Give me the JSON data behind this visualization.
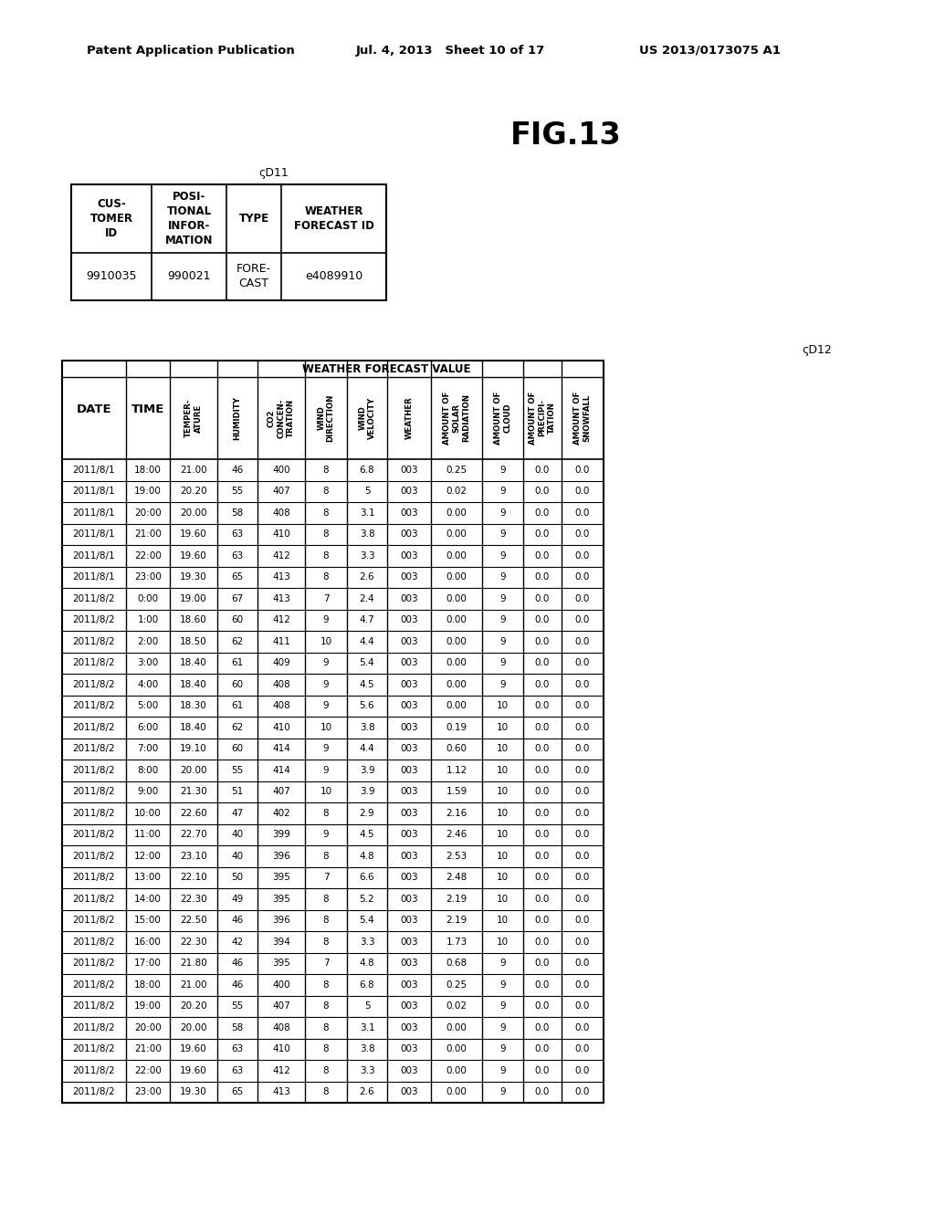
{
  "header_left": "Patent Application Publication",
  "header_mid": "Jul. 4, 2013   Sheet 10 of 17",
  "header_right": "US 2013/0173075 A1",
  "fig_title": "FIG.13",
  "d11_label": "D11",
  "d12_label": "D12",
  "table1_headers": [
    "CUS-\nTOMER\nID",
    "POSI-\nTIONAL\nINFOR-\nMATION",
    "TYPE",
    "WEATHER\nFORECAST ID"
  ],
  "table1_data": [
    [
      "9910035",
      "990021",
      "FORE-\nCAST",
      "e4089910"
    ]
  ],
  "table2_col1_header": "DATE",
  "table2_col2_header": "TIME",
  "table2_weather_header": "WEATHER FORECAST VALUE",
  "table2_subheaders": [
    "TEMPER-\nATURE",
    "HUMIDITY",
    "CO2\nCONCEN-\nTRATION",
    "WIND\nDIRECTION",
    "WIND\nVELOCITY",
    "WEATHER",
    "AMOUNT OF\nSOLAR\nRADIATION",
    "AMOUNT OF\nCLOUD",
    "AMOUNT OF\nPRECIPI-\nTATION",
    "AMOUNT OF\nSNOWFALL"
  ],
  "table2_data": [
    [
      "2011/8/1",
      "18:00",
      "21.00",
      "46",
      "400",
      "8",
      "6.8",
      "003",
      "0.25",
      "9",
      "0.0",
      "0.0"
    ],
    [
      "2011/8/1",
      "19:00",
      "20.20",
      "55",
      "407",
      "8",
      "5",
      "003",
      "0.02",
      "9",
      "0.0",
      "0.0"
    ],
    [
      "2011/8/1",
      "20:00",
      "20.00",
      "58",
      "408",
      "8",
      "3.1",
      "003",
      "0.00",
      "9",
      "0.0",
      "0.0"
    ],
    [
      "2011/8/1",
      "21:00",
      "19.60",
      "63",
      "410",
      "8",
      "3.8",
      "003",
      "0.00",
      "9",
      "0.0",
      "0.0"
    ],
    [
      "2011/8/1",
      "22:00",
      "19.60",
      "63",
      "412",
      "8",
      "3.3",
      "003",
      "0.00",
      "9",
      "0.0",
      "0.0"
    ],
    [
      "2011/8/1",
      "23:00",
      "19.30",
      "65",
      "413",
      "8",
      "2.6",
      "003",
      "0.00",
      "9",
      "0.0",
      "0.0"
    ],
    [
      "2011/8/2",
      "0:00",
      "19.00",
      "67",
      "413",
      "7",
      "2.4",
      "003",
      "0.00",
      "9",
      "0.0",
      "0.0"
    ],
    [
      "2011/8/2",
      "1:00",
      "18.60",
      "60",
      "412",
      "9",
      "4.7",
      "003",
      "0.00",
      "9",
      "0.0",
      "0.0"
    ],
    [
      "2011/8/2",
      "2:00",
      "18.50",
      "62",
      "411",
      "10",
      "4.4",
      "003",
      "0.00",
      "9",
      "0.0",
      "0.0"
    ],
    [
      "2011/8/2",
      "3:00",
      "18.40",
      "61",
      "409",
      "9",
      "5.4",
      "003",
      "0.00",
      "9",
      "0.0",
      "0.0"
    ],
    [
      "2011/8/2",
      "4:00",
      "18.40",
      "60",
      "408",
      "9",
      "4.5",
      "003",
      "0.00",
      "9",
      "0.0",
      "0.0"
    ],
    [
      "2011/8/2",
      "5:00",
      "18.30",
      "61",
      "408",
      "9",
      "5.6",
      "003",
      "0.00",
      "10",
      "0.0",
      "0.0"
    ],
    [
      "2011/8/2",
      "6:00",
      "18.40",
      "62",
      "410",
      "10",
      "3.8",
      "003",
      "0.19",
      "10",
      "0.0",
      "0.0"
    ],
    [
      "2011/8/2",
      "7:00",
      "19.10",
      "60",
      "414",
      "9",
      "4.4",
      "003",
      "0.60",
      "10",
      "0.0",
      "0.0"
    ],
    [
      "2011/8/2",
      "8:00",
      "20.00",
      "55",
      "414",
      "9",
      "3.9",
      "003",
      "1.12",
      "10",
      "0.0",
      "0.0"
    ],
    [
      "2011/8/2",
      "9:00",
      "21.30",
      "51",
      "407",
      "10",
      "3.9",
      "003",
      "1.59",
      "10",
      "0.0",
      "0.0"
    ],
    [
      "2011/8/2",
      "10:00",
      "22.60",
      "47",
      "402",
      "8",
      "2.9",
      "003",
      "2.16",
      "10",
      "0.0",
      "0.0"
    ],
    [
      "2011/8/2",
      "11:00",
      "22.70",
      "40",
      "399",
      "9",
      "4.5",
      "003",
      "2.46",
      "10",
      "0.0",
      "0.0"
    ],
    [
      "2011/8/2",
      "12:00",
      "23.10",
      "40",
      "396",
      "8",
      "4.8",
      "003",
      "2.53",
      "10",
      "0.0",
      "0.0"
    ],
    [
      "2011/8/2",
      "13:00",
      "22.10",
      "50",
      "395",
      "7",
      "6.6",
      "003",
      "2.48",
      "10",
      "0.0",
      "0.0"
    ],
    [
      "2011/8/2",
      "14:00",
      "22.30",
      "49",
      "395",
      "8",
      "5.2",
      "003",
      "2.19",
      "10",
      "0.0",
      "0.0"
    ],
    [
      "2011/8/2",
      "15:00",
      "22.50",
      "46",
      "396",
      "8",
      "5.4",
      "003",
      "2.19",
      "10",
      "0.0",
      "0.0"
    ],
    [
      "2011/8/2",
      "16:00",
      "22.30",
      "42",
      "394",
      "8",
      "3.3",
      "003",
      "1.73",
      "10",
      "0.0",
      "0.0"
    ],
    [
      "2011/8/2",
      "17:00",
      "21.80",
      "46",
      "395",
      "7",
      "4.8",
      "003",
      "0.68",
      "9",
      "0.0",
      "0.0"
    ],
    [
      "2011/8/2",
      "18:00",
      "21.00",
      "46",
      "400",
      "8",
      "6.8",
      "003",
      "0.25",
      "9",
      "0.0",
      "0.0"
    ],
    [
      "2011/8/2",
      "19:00",
      "20.20",
      "55",
      "407",
      "8",
      "5",
      "003",
      "0.02",
      "9",
      "0.0",
      "0.0"
    ],
    [
      "2011/8/2",
      "20:00",
      "20.00",
      "58",
      "408",
      "8",
      "3.1",
      "003",
      "0.00",
      "9",
      "0.0",
      "0.0"
    ],
    [
      "2011/8/2",
      "21:00",
      "19.60",
      "63",
      "410",
      "8",
      "3.8",
      "003",
      "0.00",
      "9",
      "0.0",
      "0.0"
    ],
    [
      "2011/8/2",
      "22:00",
      "19.60",
      "63",
      "412",
      "8",
      "3.3",
      "003",
      "0.00",
      "9",
      "0.0",
      "0.0"
    ],
    [
      "2011/8/2",
      "23:00",
      "19.30",
      "65",
      "413",
      "8",
      "2.6",
      "003",
      "0.00",
      "9",
      "0.0",
      "0.0"
    ]
  ]
}
